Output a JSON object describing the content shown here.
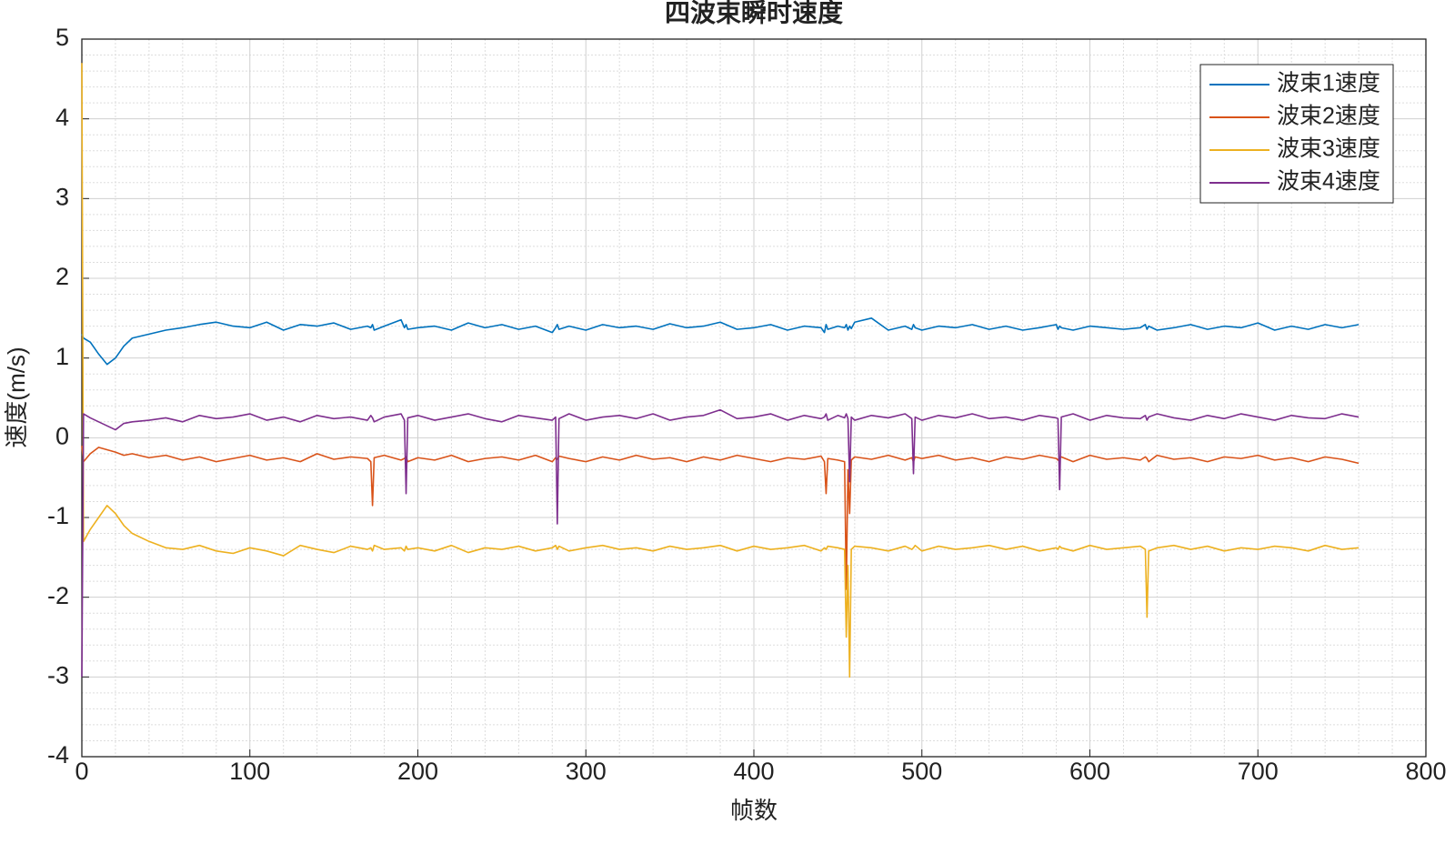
{
  "chart_data": {
    "type": "line",
    "title": "四波束瞬时速度",
    "x_label": "帧数",
    "y_label": "速度(m/s)",
    "xlim": [
      0,
      800
    ],
    "xticks": [
      0,
      100,
      200,
      300,
      400,
      500,
      600,
      700,
      800
    ],
    "ylim": [
      -4,
      5
    ],
    "yticks": [
      -4,
      -3,
      -2,
      -1,
      0,
      1,
      2,
      3,
      4,
      5
    ],
    "grid": true,
    "minor_grid": true,
    "legend": "upper right",
    "x": [
      0,
      1,
      5,
      10,
      15,
      20,
      25,
      30,
      40,
      50,
      60,
      70,
      80,
      90,
      100,
      110,
      120,
      130,
      140,
      150,
      160,
      170,
      172,
      173,
      174,
      180,
      190,
      192,
      193,
      194,
      200,
      210,
      220,
      230,
      240,
      250,
      260,
      270,
      280,
      282,
      283,
      284,
      290,
      300,
      310,
      320,
      330,
      340,
      350,
      360,
      370,
      380,
      390,
      400,
      410,
      420,
      430,
      440,
      442,
      443,
      444,
      450,
      454,
      455,
      456,
      457,
      458,
      460,
      470,
      480,
      490,
      494,
      495,
      496,
      500,
      510,
      520,
      530,
      540,
      550,
      560,
      570,
      580,
      581,
      582,
      583,
      590,
      600,
      610,
      620,
      630,
      633,
      634,
      635,
      640,
      650,
      660,
      670,
      680,
      690,
      700,
      710,
      720,
      730,
      740,
      750,
      760
    ],
    "series": [
      {
        "name": "波束1速度",
        "color": "#0072BD",
        "values": [
          1.3,
          1.25,
          1.2,
          1.05,
          0.92,
          1.0,
          1.15,
          1.25,
          1.3,
          1.35,
          1.38,
          1.42,
          1.45,
          1.4,
          1.38,
          1.45,
          1.35,
          1.42,
          1.4,
          1.44,
          1.36,
          1.4,
          1.38,
          1.42,
          1.35,
          1.4,
          1.48,
          1.38,
          1.42,
          1.36,
          1.38,
          1.4,
          1.35,
          1.44,
          1.38,
          1.42,
          1.36,
          1.4,
          1.32,
          1.38,
          1.42,
          1.36,
          1.4,
          1.35,
          1.42,
          1.38,
          1.4,
          1.36,
          1.43,
          1.38,
          1.4,
          1.45,
          1.36,
          1.38,
          1.42,
          1.35,
          1.4,
          1.38,
          1.32,
          1.42,
          1.36,
          1.4,
          1.38,
          1.42,
          1.35,
          1.4,
          1.37,
          1.45,
          1.5,
          1.35,
          1.4,
          1.36,
          1.42,
          1.38,
          1.35,
          1.4,
          1.38,
          1.42,
          1.36,
          1.4,
          1.35,
          1.38,
          1.42,
          1.36,
          1.4,
          1.38,
          1.35,
          1.4,
          1.38,
          1.36,
          1.38,
          1.42,
          1.36,
          1.4,
          1.35,
          1.38,
          1.42,
          1.36,
          1.4,
          1.38,
          1.44,
          1.35,
          1.4,
          1.36,
          1.42,
          1.38,
          1.42
        ]
      },
      {
        "name": "波束2速度",
        "color": "#D95319",
        "values": [
          -0.1,
          -0.3,
          -0.2,
          -0.12,
          -0.15,
          -0.18,
          -0.22,
          -0.2,
          -0.25,
          -0.22,
          -0.28,
          -0.24,
          -0.3,
          -0.26,
          -0.22,
          -0.28,
          -0.25,
          -0.3,
          -0.2,
          -0.27,
          -0.24,
          -0.26,
          -0.3,
          -0.85,
          -0.25,
          -0.22,
          -0.28,
          -0.26,
          -0.24,
          -0.3,
          -0.25,
          -0.28,
          -0.22,
          -0.3,
          -0.26,
          -0.24,
          -0.28,
          -0.22,
          -0.3,
          -0.25,
          -0.27,
          -0.23,
          -0.26,
          -0.3,
          -0.24,
          -0.28,
          -0.22,
          -0.27,
          -0.25,
          -0.3,
          -0.24,
          -0.28,
          -0.22,
          -0.26,
          -0.3,
          -0.25,
          -0.27,
          -0.23,
          -0.3,
          -0.7,
          -0.26,
          -0.28,
          -0.3,
          -1.9,
          -0.4,
          -0.95,
          -0.28,
          -0.24,
          -0.27,
          -0.22,
          -0.28,
          -0.25,
          -0.3,
          -0.24,
          -0.26,
          -0.22,
          -0.28,
          -0.25,
          -0.3,
          -0.24,
          -0.27,
          -0.22,
          -0.26,
          -0.28,
          -0.25,
          -0.24,
          -0.3,
          -0.22,
          -0.27,
          -0.25,
          -0.28,
          -0.24,
          -0.26,
          -0.3,
          -0.22,
          -0.27,
          -0.25,
          -0.3,
          -0.24,
          -0.26,
          -0.22,
          -0.28,
          -0.25,
          -0.3,
          -0.24,
          -0.27,
          -0.32
        ]
      },
      {
        "name": "波束3速度",
        "color": "#EDB120",
        "values": [
          4.7,
          -1.3,
          -1.15,
          -1.0,
          -0.85,
          -0.95,
          -1.1,
          -1.2,
          -1.3,
          -1.38,
          -1.4,
          -1.35,
          -1.42,
          -1.45,
          -1.38,
          -1.42,
          -1.48,
          -1.35,
          -1.4,
          -1.44,
          -1.36,
          -1.4,
          -1.38,
          -1.42,
          -1.35,
          -1.4,
          -1.38,
          -1.42,
          -1.36,
          -1.4,
          -1.38,
          -1.42,
          -1.35,
          -1.44,
          -1.38,
          -1.4,
          -1.36,
          -1.42,
          -1.38,
          -1.35,
          -1.4,
          -1.36,
          -1.42,
          -1.38,
          -1.35,
          -1.4,
          -1.38,
          -1.42,
          -1.36,
          -1.4,
          -1.38,
          -1.35,
          -1.42,
          -1.36,
          -1.4,
          -1.38,
          -1.35,
          -1.42,
          -1.38,
          -1.4,
          -1.36,
          -1.38,
          -1.4,
          -2.5,
          -1.6,
          -3.0,
          -1.4,
          -1.36,
          -1.38,
          -1.42,
          -1.36,
          -1.4,
          -1.38,
          -1.35,
          -1.42,
          -1.36,
          -1.4,
          -1.38,
          -1.35,
          -1.4,
          -1.36,
          -1.42,
          -1.38,
          -1.4,
          -1.36,
          -1.38,
          -1.42,
          -1.35,
          -1.4,
          -1.38,
          -1.36,
          -1.4,
          -2.25,
          -1.42,
          -1.38,
          -1.35,
          -1.4,
          -1.36,
          -1.42,
          -1.38,
          -1.4,
          -1.36,
          -1.38,
          -1.42,
          -1.35,
          -1.4,
          -1.38
        ]
      },
      {
        "name": "波束4速度",
        "color": "#7E2F8E",
        "values": [
          -3.0,
          0.3,
          0.25,
          0.2,
          0.15,
          0.1,
          0.18,
          0.2,
          0.22,
          0.25,
          0.2,
          0.28,
          0.24,
          0.26,
          0.3,
          0.22,
          0.26,
          0.2,
          0.28,
          0.24,
          0.26,
          0.22,
          0.28,
          0.25,
          0.2,
          0.26,
          0.3,
          0.22,
          -0.7,
          0.25,
          0.28,
          0.22,
          0.26,
          0.3,
          0.24,
          0.2,
          0.28,
          0.25,
          0.22,
          0.26,
          -1.08,
          0.24,
          0.3,
          0.22,
          0.26,
          0.28,
          0.24,
          0.3,
          0.22,
          0.26,
          0.28,
          0.35,
          0.24,
          0.26,
          0.3,
          0.22,
          0.28,
          0.24,
          0.26,
          0.3,
          0.22,
          0.28,
          0.25,
          0.3,
          0.24,
          -0.55,
          0.26,
          0.22,
          0.28,
          0.25,
          0.3,
          0.24,
          -0.45,
          0.26,
          0.22,
          0.28,
          0.25,
          0.3,
          0.24,
          0.26,
          0.22,
          0.28,
          0.25,
          0.24,
          -0.65,
          0.26,
          0.3,
          0.22,
          0.28,
          0.25,
          0.24,
          0.28,
          0.22,
          0.26,
          0.3,
          0.25,
          0.22,
          0.28,
          0.24,
          0.3,
          0.26,
          0.22,
          0.28,
          0.25,
          0.24,
          0.3,
          0.26
        ]
      }
    ]
  }
}
